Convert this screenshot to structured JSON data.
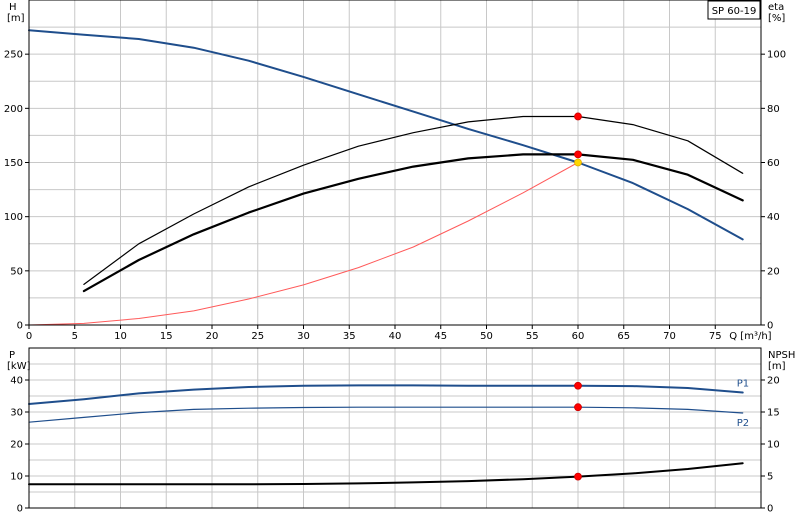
{
  "chart_data": [
    {
      "type": "line",
      "panel": "upper",
      "title_box": "SP 60-19",
      "left_axis": {
        "label_line1": "H",
        "label_line2": "[m]",
        "range": [
          0,
          300
        ],
        "ticks": [
          0,
          50,
          100,
          150,
          200,
          250
        ]
      },
      "right_axis": {
        "label_line1": "eta",
        "label_line2": "[%]",
        "range": [
          0,
          120
        ],
        "ticks": [
          0,
          20,
          40,
          60,
          80,
          100
        ]
      },
      "x_axis": {
        "label": "Q [m³/h]",
        "range": [
          0,
          80
        ],
        "ticks": [
          0,
          5,
          10,
          15,
          20,
          25,
          30,
          35,
          40,
          45,
          50,
          55,
          60,
          65,
          70,
          75
        ]
      },
      "series": [
        {
          "axis": "left",
          "color": "#1f4e8c",
          "width": 2,
          "x": [
            0,
            6,
            12,
            18,
            24,
            30,
            36,
            42,
            48,
            54,
            60,
            66,
            72,
            78
          ],
          "y": [
            272,
            268,
            264,
            256,
            244,
            229,
            213,
            197,
            181,
            166,
            150,
            131,
            107,
            79
          ]
        },
        {
          "axis": "right",
          "color": "#000000",
          "width": 1.2,
          "x": [
            6,
            12,
            18,
            24,
            30,
            36,
            42,
            48,
            54,
            60,
            66,
            72,
            78
          ],
          "y": [
            15,
            30,
            41,
            51,
            59,
            66,
            71,
            75,
            77,
            77,
            74,
            68,
            56
          ]
        },
        {
          "axis": "right",
          "color": "#000000",
          "width": 2.2,
          "x": [
            6,
            12,
            18,
            24,
            30,
            36,
            42,
            48,
            54,
            60,
            66,
            72,
            78
          ],
          "y": [
            12.5,
            24,
            33.5,
            41.5,
            48.5,
            54,
            58.5,
            61.5,
            63,
            63,
            61,
            55.5,
            46
          ]
        },
        {
          "axis": "left",
          "color": "#ff5a5a",
          "width": 1,
          "x": [
            0,
            6,
            12,
            18,
            24,
            30,
            36,
            42,
            48,
            54,
            60
          ],
          "y": [
            0,
            1.5,
            6,
            13,
            24,
            37,
            53,
            72,
            96,
            122,
            150
          ]
        }
      ],
      "markers": [
        {
          "axis": "right",
          "x": 60,
          "y": 77,
          "color": "#ff0000"
        },
        {
          "axis": "right",
          "x": 60,
          "y": 63,
          "color": "#ff0000"
        },
        {
          "axis": "left",
          "x": 60,
          "y": 150,
          "color": "#ffd700"
        }
      ]
    },
    {
      "type": "line",
      "panel": "lower",
      "left_axis": {
        "label_line1": "P",
        "label_line2": "[kW]",
        "range": [
          0,
          50
        ],
        "ticks": [
          0,
          10,
          20,
          30,
          40
        ]
      },
      "right_axis": {
        "label_line1": "NPSH",
        "label_line2": "[m]",
        "range": [
          0,
          25
        ],
        "ticks": [
          0,
          5,
          10,
          15,
          20
        ]
      },
      "x_axis": {
        "range": [
          0,
          80
        ]
      },
      "series": [
        {
          "name": "P1",
          "axis": "left",
          "color": "#1f4e8c",
          "width": 2,
          "x": [
            0,
            6,
            12,
            18,
            24,
            30,
            36,
            42,
            48,
            54,
            60,
            66,
            72,
            78
          ],
          "y": [
            32.5,
            34,
            35.8,
            37,
            37.8,
            38.2,
            38.3,
            38.3,
            38.2,
            38.2,
            38.2,
            38.1,
            37.5,
            36.1
          ]
        },
        {
          "name": "P2",
          "axis": "left",
          "color": "#1f4e8c",
          "width": 1.2,
          "x": [
            0,
            6,
            12,
            18,
            24,
            30,
            36,
            42,
            48,
            54,
            60,
            66,
            72,
            78
          ],
          "y": [
            26.8,
            28.3,
            29.8,
            30.8,
            31.2,
            31.4,
            31.5,
            31.5,
            31.5,
            31.5,
            31.5,
            31.3,
            30.8,
            29.7
          ]
        },
        {
          "axis": "right",
          "color": "#000000",
          "width": 2,
          "x": [
            0,
            6,
            12,
            18,
            24,
            30,
            36,
            42,
            48,
            54,
            60,
            66,
            72,
            78
          ],
          "y": [
            3.7,
            3.7,
            3.7,
            3.7,
            3.7,
            3.75,
            3.85,
            4.0,
            4.2,
            4.5,
            4.9,
            5.4,
            6.1,
            7.0
          ]
        }
      ],
      "markers": [
        {
          "axis": "left",
          "x": 60,
          "y": 38.2,
          "color": "#ff0000"
        },
        {
          "axis": "left",
          "x": 60,
          "y": 31.5,
          "color": "#ff0000"
        },
        {
          "axis": "right",
          "x": 60,
          "y": 4.9,
          "color": "#ff0000"
        }
      ]
    }
  ]
}
